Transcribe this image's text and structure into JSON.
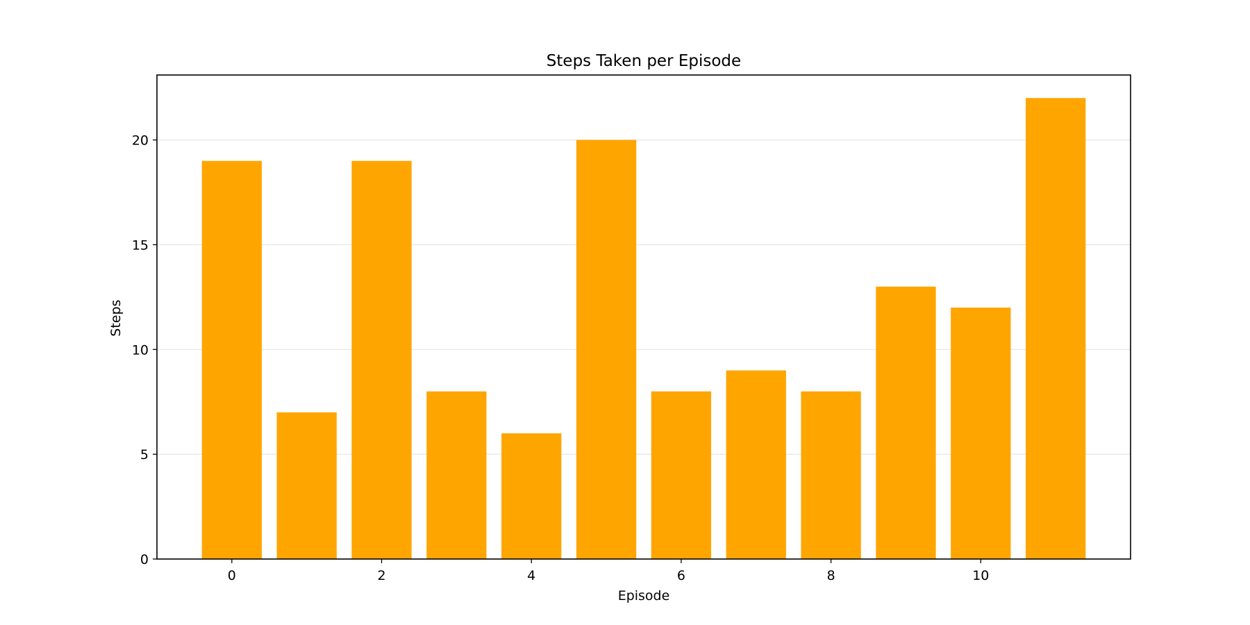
{
  "chart_data": {
    "type": "bar",
    "title": "Steps Taken per Episode",
    "xlabel": "Episode",
    "ylabel": "Steps",
    "categories": [
      0,
      1,
      2,
      3,
      4,
      5,
      6,
      7,
      8,
      9,
      10,
      11
    ],
    "values": [
      19,
      7,
      19,
      8,
      6,
      20,
      8,
      9,
      8,
      13,
      12,
      22
    ],
    "xlim": [
      -1,
      12
    ],
    "ylim": [
      0,
      23.1
    ],
    "x_ticks": [
      0,
      2,
      4,
      6,
      8,
      10
    ],
    "y_ticks": [
      0,
      5,
      10,
      15,
      20
    ],
    "grid": "y-axis only",
    "bar_color": "#ffa500",
    "grid_color": "#e6e6e6"
  }
}
